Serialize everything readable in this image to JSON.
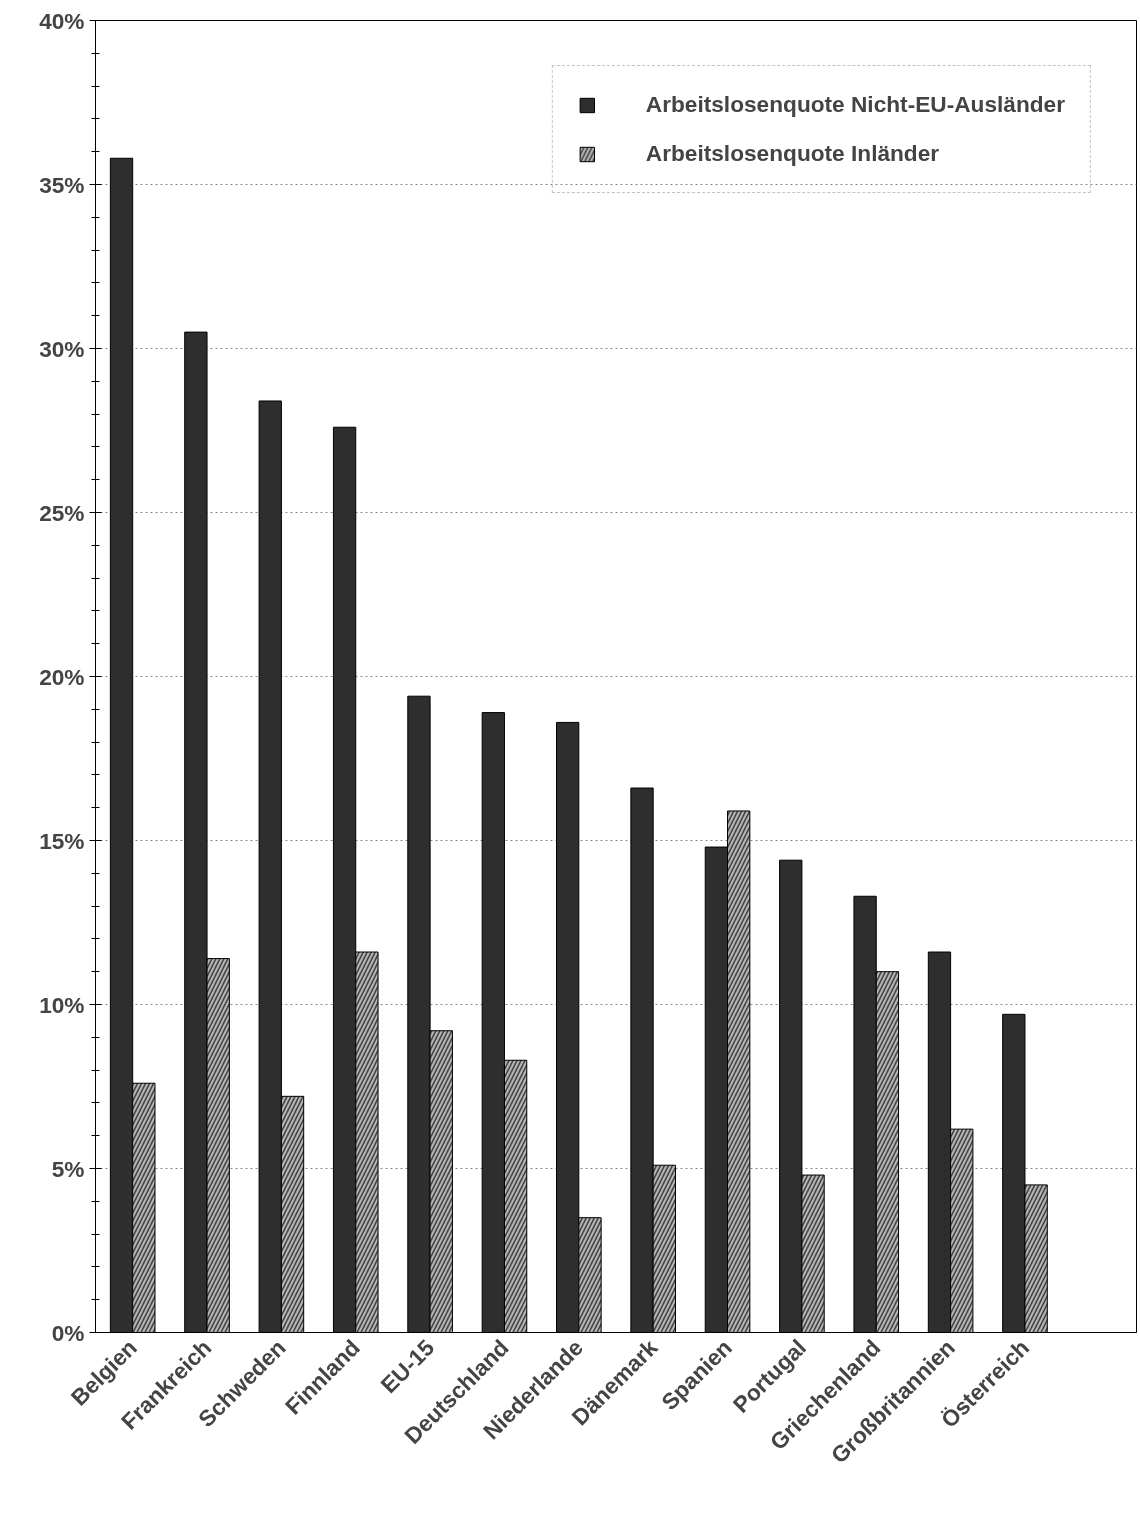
{
  "chart_data": {
    "type": "bar",
    "categories": [
      "Belgien",
      "Frankreich",
      "Schweden",
      "Finnland",
      "EU-15",
      "Deutschland",
      "Niederlande",
      "Dänemark",
      "Spanien",
      "Portugal",
      "Griechenland",
      "Großbritannien",
      "Österreich",
      null
    ],
    "series": [
      {
        "name": "Arbeitslosenquote Nicht-EU-Ausländer",
        "color": "#2e2e2e",
        "values": [
          35.8,
          30.5,
          28.4,
          27.6,
          19.4,
          18.9,
          18.6,
          16.6,
          14.8,
          14.4,
          13.3,
          11.6,
          9.7,
          null
        ]
      },
      {
        "name": "Arbeitslosenquote Inländer",
        "color": "#b4b4b4",
        "values": [
          7.6,
          11.4,
          7.2,
          11.6,
          9.2,
          8.3,
          3.5,
          5.1,
          15.9,
          4.8,
          11.0,
          6.2,
          4.5,
          null
        ]
      }
    ],
    "ylim": [
      0,
      40
    ],
    "yticks": [
      {
        "value": 0,
        "label": "0%"
      },
      {
        "value": 5,
        "label": "5%"
      },
      {
        "value": 10,
        "label": "10%"
      },
      {
        "value": 15,
        "label": "15%"
      },
      {
        "value": 20,
        "label": "20%"
      },
      {
        "value": 25,
        "label": "25%"
      },
      {
        "value": 30,
        "label": "30%"
      },
      {
        "value": 35,
        "label": "35%"
      },
      {
        "value": 40,
        "label": "40%"
      }
    ],
    "grid": "y",
    "legend": "top right"
  }
}
